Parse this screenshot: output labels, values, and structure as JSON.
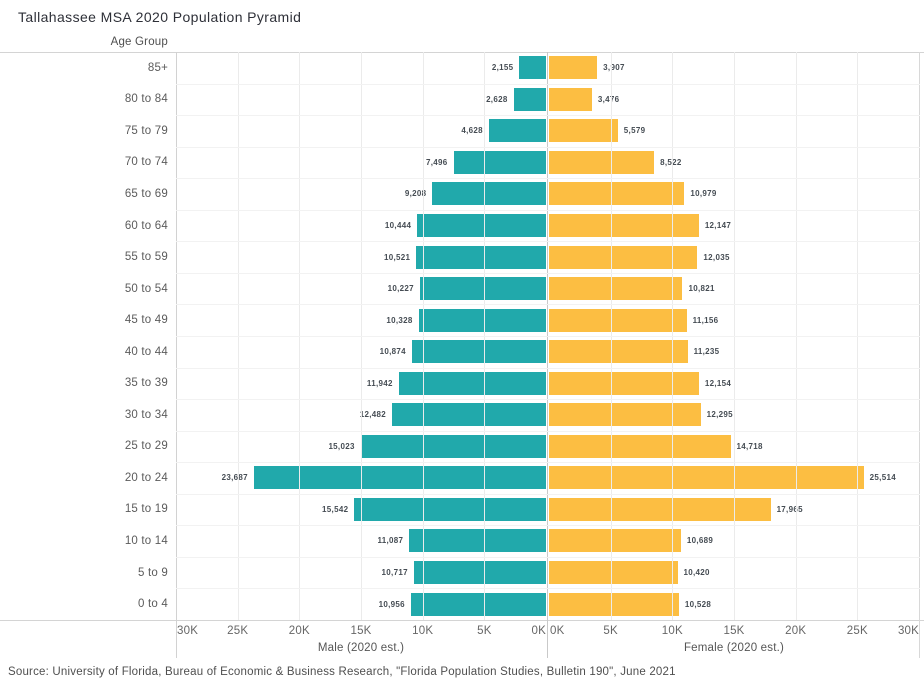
{
  "title": "Tallahassee MSA 2020 Population Pyramid",
  "row_header": "Age Group",
  "source": "Source: University of Florida, Bureau of Economic & Business Research, \"Florida Population Studies, Bulletin 190\", June 2021",
  "colors": {
    "male_bar": "#21a9ab",
    "female_bar": "#fcbe42"
  },
  "axes": {
    "male_title": "Male (2020 est.)",
    "female_title": "Female (2020 est.)",
    "male_ticks": [
      "30K",
      "25K",
      "20K",
      "15K",
      "10K",
      "5K",
      "0K"
    ],
    "female_ticks": [
      "0K",
      "5K",
      "10K",
      "15K",
      "20K",
      "25K",
      "30K"
    ],
    "max_value": 30000
  },
  "chart_data": {
    "type": "bar",
    "orientation": "horizontal-population-pyramid",
    "title": "Tallahassee MSA 2020 Population Pyramid",
    "ylabel": "Age Group",
    "xlim": [
      0,
      30000
    ],
    "grid": true,
    "categories": [
      "85+",
      "80 to 84",
      "75 to 79",
      "70 to 74",
      "65 to 69",
      "60 to 64",
      "55 to 59",
      "50 to 54",
      "45 to 49",
      "40 to 44",
      "35 to 39",
      "30 to 34",
      "25 to 29",
      "20 to 24",
      "15 to 19",
      "10 to 14",
      "5 to 9",
      "0 to 4"
    ],
    "series": [
      {
        "name": "Male (2020 est.)",
        "direction": "left",
        "color": "#21a9ab",
        "values": [
          2155,
          2628,
          4628,
          7496,
          9208,
          10444,
          10521,
          10227,
          10328,
          10874,
          11942,
          12482,
          15023,
          23687,
          15542,
          11087,
          10717,
          10956
        ]
      },
      {
        "name": "Female (2020 est.)",
        "direction": "right",
        "color": "#fcbe42",
        "values": [
          3907,
          3476,
          5579,
          8522,
          10979,
          12147,
          12035,
          10821,
          11156,
          11235,
          12154,
          12295,
          14718,
          25514,
          17965,
          10689,
          10420,
          10528
        ]
      }
    ]
  }
}
